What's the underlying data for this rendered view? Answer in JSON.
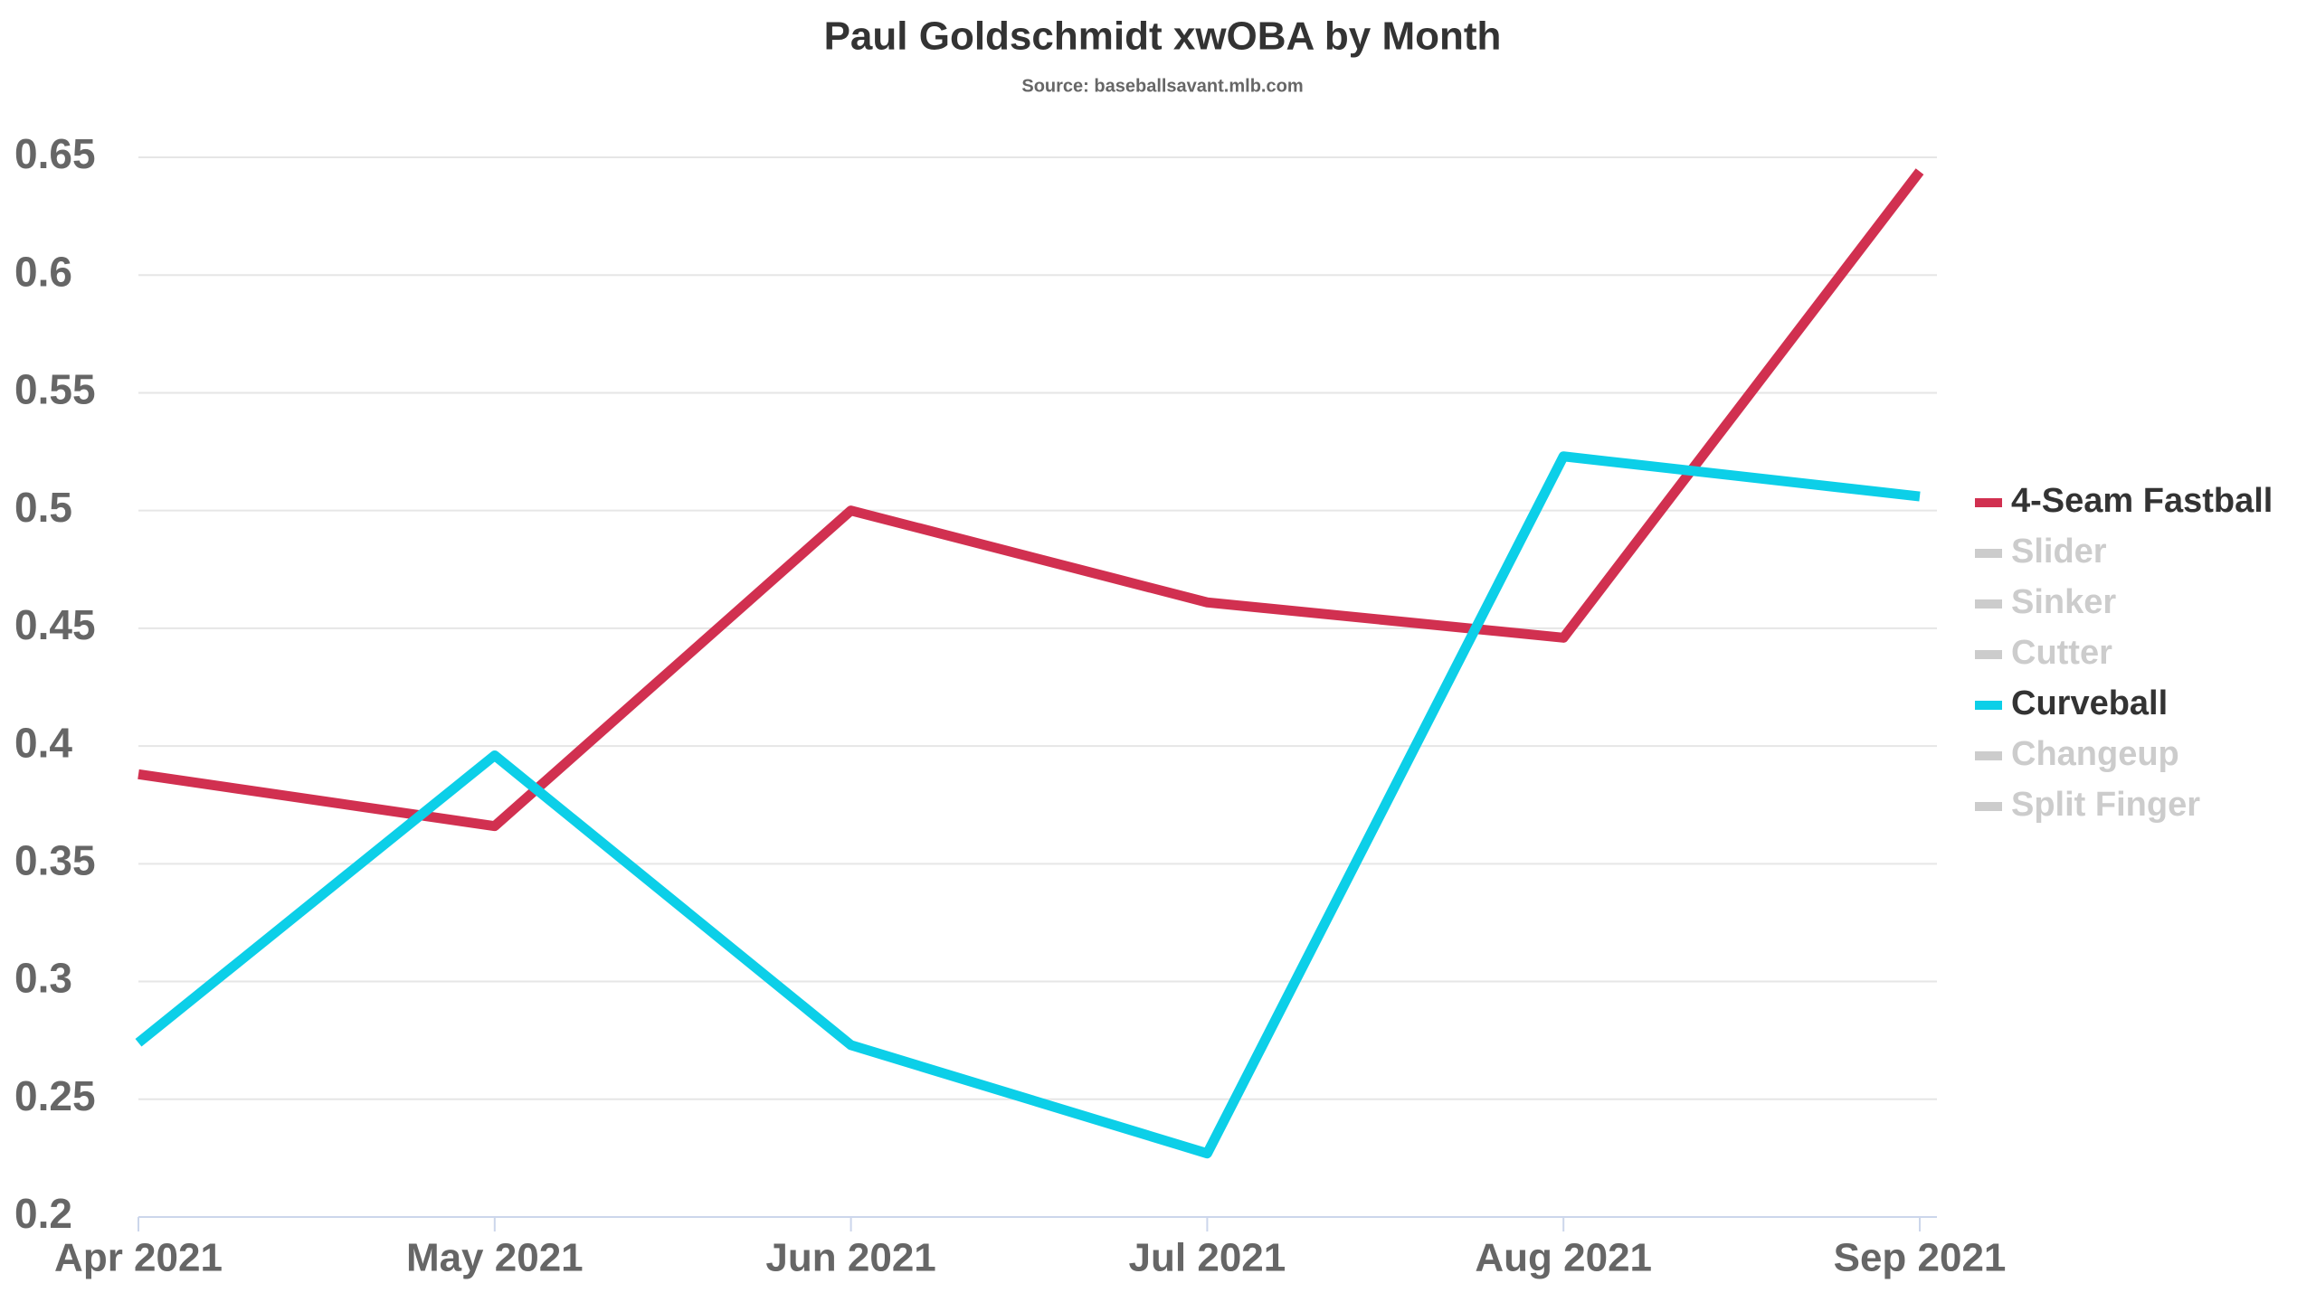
{
  "chart_data": {
    "type": "line",
    "title": "Paul Goldschmidt xwOBA by Month",
    "subtitle": "Source: baseballsavant.mlb.com",
    "categories": [
      "Apr 2021",
      "May 2021",
      "Jun 2021",
      "Jul 2021",
      "Aug 2021",
      "Sep 2021"
    ],
    "series": [
      {
        "name": "4-Seam Fastball",
        "color": "#d13050",
        "visible": true,
        "values": [
          0.388,
          0.366,
          0.5,
          0.461,
          0.446,
          0.644
        ]
      },
      {
        "name": "Slider",
        "color": "#cccccc",
        "visible": false,
        "values": [
          null,
          null,
          null,
          null,
          null,
          null
        ]
      },
      {
        "name": "Sinker",
        "color": "#cccccc",
        "visible": false,
        "values": [
          null,
          null,
          null,
          null,
          null,
          null
        ]
      },
      {
        "name": "Cutter",
        "color": "#cccccc",
        "visible": false,
        "values": [
          null,
          null,
          null,
          null,
          null,
          null
        ]
      },
      {
        "name": "Curveball",
        "color": "#0ccfe8",
        "visible": true,
        "values": [
          0.274,
          0.396,
          0.273,
          0.227,
          0.523,
          0.506
        ]
      },
      {
        "name": "Changeup",
        "color": "#cccccc",
        "visible": false,
        "values": [
          null,
          null,
          null,
          null,
          null,
          null
        ]
      },
      {
        "name": "Split Finger",
        "color": "#cccccc",
        "visible": false,
        "values": [
          null,
          null,
          null,
          null,
          null,
          null
        ]
      }
    ],
    "ylim": [
      0.2,
      0.65
    ],
    "yticks": [
      0.2,
      0.25,
      0.3,
      0.35,
      0.4,
      0.45,
      0.5,
      0.55,
      0.6,
      0.65
    ],
    "grid": true,
    "legend": "right"
  }
}
